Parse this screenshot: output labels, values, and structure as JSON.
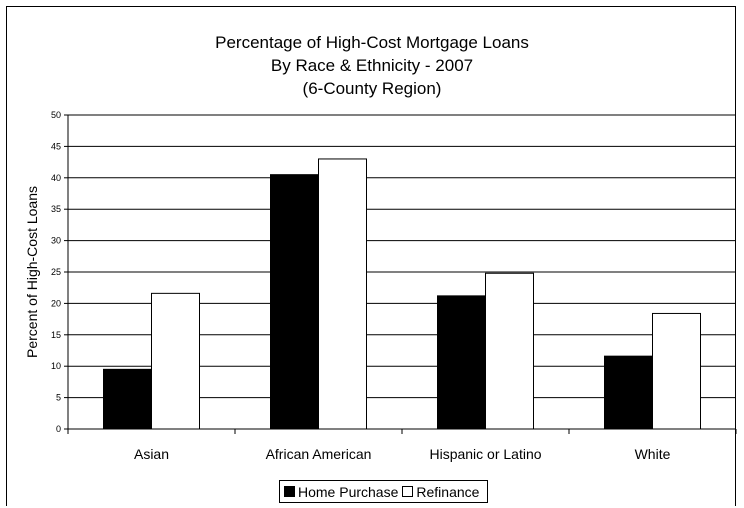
{
  "chart_data": {
    "type": "bar",
    "title_lines": [
      "Percentage of High-Cost Mortgage Loans",
      "By Race & Ethnicity - 2007",
      "(6-County Region)"
    ],
    "xlabel": "",
    "ylabel": "Percent of High-Cost Loans",
    "categories": [
      "Asian",
      "African American",
      "Hispanic or Latino",
      "White"
    ],
    "series": [
      {
        "name": "Home Purchase",
        "color": "#000000",
        "values": [
          9.5,
          40.5,
          21.2,
          11.6
        ]
      },
      {
        "name": "Refinance",
        "color": "#ffffff",
        "values": [
          21.6,
          43.0,
          24.8,
          18.4
        ]
      }
    ],
    "ylim": [
      0,
      50
    ],
    "yticks": [
      "0",
      "5",
      "10",
      "15",
      "20",
      "25",
      "30",
      "35",
      "40",
      "45",
      "50"
    ],
    "grid": true,
    "legend_position": "bottom"
  }
}
